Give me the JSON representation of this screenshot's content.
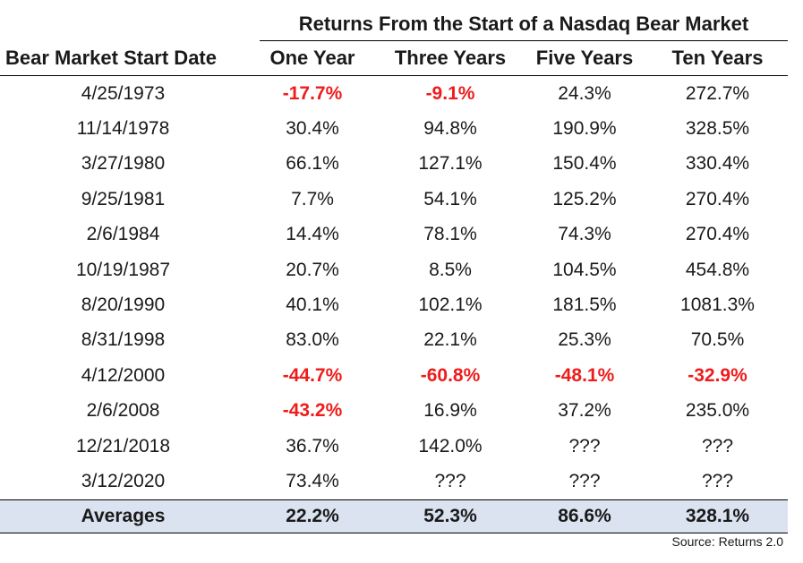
{
  "title": "Returns From the Start of a Nasdaq Bear Market",
  "columns": [
    "Bear Market Start Date",
    "One Year",
    "Three Years",
    "Five Years",
    "Ten Years"
  ],
  "rows": [
    {
      "date": "4/25/1973",
      "values": [
        "-17.7%",
        "-9.1%",
        "24.3%",
        "272.7%"
      ]
    },
    {
      "date": "11/14/1978",
      "values": [
        "30.4%",
        "94.8%",
        "190.9%",
        "328.5%"
      ]
    },
    {
      "date": "3/27/1980",
      "values": [
        "66.1%",
        "127.1%",
        "150.4%",
        "330.4%"
      ]
    },
    {
      "date": "9/25/1981",
      "values": [
        "7.7%",
        "54.1%",
        "125.2%",
        "270.4%"
      ]
    },
    {
      "date": "2/6/1984",
      "values": [
        "14.4%",
        "78.1%",
        "74.3%",
        "270.4%"
      ]
    },
    {
      "date": "10/19/1987",
      "values": [
        "20.7%",
        "8.5%",
        "104.5%",
        "454.8%"
      ]
    },
    {
      "date": "8/20/1990",
      "values": [
        "40.1%",
        "102.1%",
        "181.5%",
        "1081.3%"
      ]
    },
    {
      "date": "8/31/1998",
      "values": [
        "83.0%",
        "22.1%",
        "25.3%",
        "70.5%"
      ]
    },
    {
      "date": "4/12/2000",
      "values": [
        "-44.7%",
        "-60.8%",
        "-48.1%",
        "-32.9%"
      ]
    },
    {
      "date": "2/6/2008",
      "values": [
        "-43.2%",
        "16.9%",
        "37.2%",
        "235.0%"
      ]
    },
    {
      "date": "12/21/2018",
      "values": [
        "36.7%",
        "142.0%",
        "???",
        "???"
      ]
    },
    {
      "date": "3/12/2020",
      "values": [
        "73.4%",
        "???",
        "???",
        "???"
      ]
    }
  ],
  "averages": {
    "label": "Averages",
    "values": [
      "22.2%",
      "52.3%",
      "86.6%",
      "328.1%"
    ]
  },
  "source": "Source: Returns 2.0",
  "colors": {
    "negative": "#ee1c1c",
    "averages_bg": "#dbe3f1",
    "rule": "#000000"
  }
}
